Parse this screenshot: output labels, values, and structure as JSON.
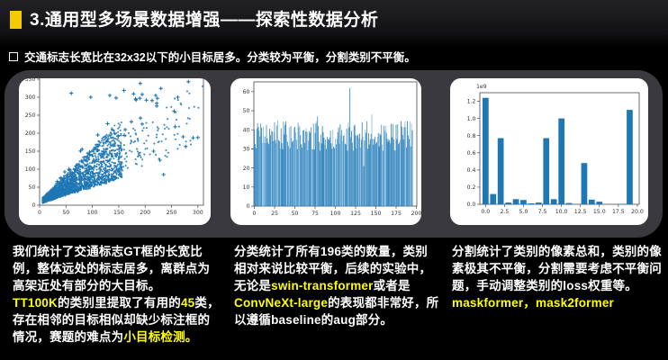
{
  "slide": {
    "title": "3.通用型多场景数据增强——探索性数据分析",
    "subtitle": "交通标志长宽比在32x32以下的小目标居多。分类较为平衡，分割类别不平衡。",
    "colors": {
      "highlight_text": "#ffff00",
      "title_bullet": "#f2cb05",
      "panel_gray": "#3a3a3e",
      "chart_blue": "#1f77b4",
      "background": "#000000"
    }
  },
  "chart_data": [
    {
      "type": "scatter",
      "description": "GT框长宽散点图：密集楔形分布，小目标居多，右上为离群大目标",
      "xlim": [
        0,
        310
      ],
      "ylim": [
        0,
        355
      ],
      "xticks": [
        0,
        50,
        100,
        150,
        200,
        250,
        300
      ],
      "yticks": [
        0,
        50,
        100,
        150,
        200,
        250,
        300,
        350
      ],
      "n_points": 2400,
      "n_tail": 130,
      "n_upper": 55,
      "seed": 11,
      "color": "#1f77b4",
      "outliers": [
        [
          60,
          311
        ],
        [
          97,
          300
        ],
        [
          133,
          305
        ],
        [
          145,
          298
        ],
        [
          190,
          297
        ],
        [
          220,
          305
        ],
        [
          222,
          283
        ],
        [
          255,
          261
        ],
        [
          282,
          343
        ],
        [
          262,
          300
        ],
        [
          300,
          188
        ],
        [
          291,
          187
        ],
        [
          272,
          190
        ],
        [
          277,
          163
        ],
        [
          257,
          218
        ],
        [
          235,
          85
        ],
        [
          228,
          125
        ],
        [
          216,
          150
        ]
      ]
    },
    {
      "type": "bar",
      "description": "196个分类类别的数量分布，较为平衡",
      "n_bars": 196,
      "seed": 5,
      "value_range": [
        29,
        45
      ],
      "overrides": {
        "78": 47,
        "118": 62,
        "135": 21,
        "145": 48
      },
      "xticks": [
        0,
        25,
        50,
        75,
        100,
        125,
        150,
        175,
        200
      ],
      "yticks": [
        0,
        10,
        20,
        30,
        40,
        50,
        60
      ],
      "ylim": [
        0,
        65
      ],
      "color": "#1f77b4"
    },
    {
      "type": "bar",
      "description": "分割类别像素总和，极不平衡",
      "scale_label": "1e9",
      "categories": [
        0,
        1,
        2,
        3,
        4,
        5,
        6,
        7,
        8,
        9,
        10,
        11,
        12,
        13,
        14,
        15,
        16,
        17,
        18,
        19
      ],
      "values": [
        1.24,
        0.12,
        0.77,
        0.02,
        0.06,
        0.05,
        0.01,
        0.02,
        0.77,
        0.06,
        1.0,
        0.015,
        0,
        0.48,
        0.055,
        0.03,
        0,
        0,
        0.005,
        1.1
      ],
      "xticks": [
        "0.0",
        "2.5",
        "5.0",
        "7.5",
        "10.0",
        "12.5",
        "15.0",
        "17.5",
        "20.0"
      ],
      "yticks": [
        "0.0",
        "0.2",
        "0.4",
        "0.6",
        "0.8",
        "1.0",
        "1.2"
      ],
      "ylim": [
        0,
        1.3
      ],
      "color": "#1f77b4"
    }
  ],
  "notes": [
    {
      "segments": [
        {
          "text": "我们统计了交通标志GT框的长宽比例，整体远处的标志居多，离群点为高架近处有部分的大目标。",
          "color": "white"
        },
        {
          "text": "TT100K",
          "color": "yellow",
          "newline": true
        },
        {
          "text": "的类别里提取了有用的",
          "color": "white"
        },
        {
          "text": "45",
          "color": "yellow"
        },
        {
          "text": "类，存在相邻的目标相似却缺少标注框的情况，赛题的难点为",
          "color": "white"
        },
        {
          "text": "小目标检测。",
          "color": "yellow"
        }
      ]
    },
    {
      "segments": [
        {
          "text": "分类统计了所有196类的数量，类别相对来说比较平衡，后续的实验中，无论是",
          "color": "white"
        },
        {
          "text": "swin-transformer",
          "color": "yellow"
        },
        {
          "text": "或者是",
          "color": "white"
        },
        {
          "text": "ConvNeXt-large",
          "color": "yellow"
        },
        {
          "text": "的表现都非常好，所以遵循baseline的aug部分。",
          "color": "white"
        }
      ]
    },
    {
      "segments": [
        {
          "text": "分割统计了类别的像素总和，类别的像素极其不平衡，分割需要考虑不平衡问题，手动调整类别的loss权重等。",
          "color": "white"
        },
        {
          "text": "maskformer，mask2former",
          "color": "yellow",
          "newline": true
        }
      ]
    }
  ]
}
